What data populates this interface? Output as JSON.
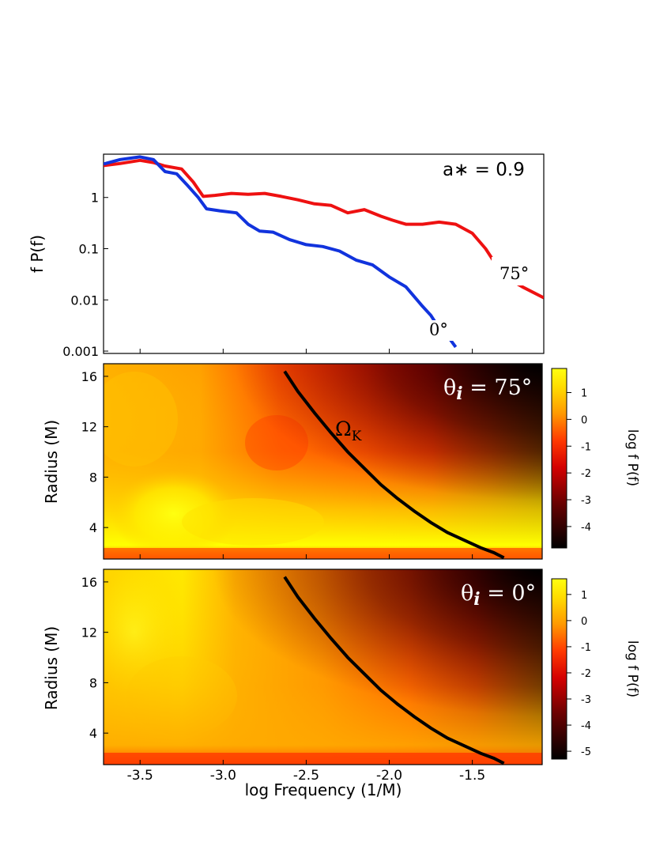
{
  "figure": {
    "x_axis_label": "log Frequency (1/M)",
    "x_ticks": [
      -3.5,
      -3.0,
      -2.5,
      -2.0,
      -1.5
    ],
    "x_tick_labels": [
      "-3.5",
      "-3.0",
      "-2.5",
      "-2.0",
      "-1.5"
    ],
    "xlim": [
      -3.72,
      -1.07
    ]
  },
  "colors": {
    "red": "#ee1111",
    "blue": "#1133dd",
    "curve": "#000000"
  },
  "chart_data": [
    {
      "type": "line",
      "ylabel": "f P(f)",
      "yscale": "log",
      "ylim": [
        0.0009,
        7
      ],
      "y_ticks": [
        0.001,
        0.01,
        0.1,
        1
      ],
      "y_tick_labels": [
        "0.001",
        "0.01",
        "0.1",
        "1"
      ],
      "annotation_main": "a∗ = 0.9",
      "series": [
        {
          "name": "75°",
          "color": "#ee1111",
          "points": [
            [
              -3.72,
              4.2
            ],
            [
              -3.62,
              4.6
            ],
            [
              -3.5,
              5.3
            ],
            [
              -3.42,
              4.8
            ],
            [
              -3.35,
              4.1
            ],
            [
              -3.25,
              3.6
            ],
            [
              -3.18,
              2.0
            ],
            [
              -3.12,
              1.05
            ],
            [
              -3.05,
              1.1
            ],
            [
              -2.95,
              1.2
            ],
            [
              -2.85,
              1.15
            ],
            [
              -2.75,
              1.2
            ],
            [
              -2.65,
              1.05
            ],
            [
              -2.55,
              0.9
            ],
            [
              -2.45,
              0.75
            ],
            [
              -2.35,
              0.7
            ],
            [
              -2.25,
              0.5
            ],
            [
              -2.15,
              0.58
            ],
            [
              -2.05,
              0.43
            ],
            [
              -1.98,
              0.36
            ],
            [
              -1.9,
              0.3
            ],
            [
              -1.8,
              0.3
            ],
            [
              -1.7,
              0.33
            ],
            [
              -1.6,
              0.3
            ],
            [
              -1.5,
              0.2
            ],
            [
              -1.42,
              0.1
            ],
            [
              -1.35,
              0.045
            ],
            [
              -1.3,
              0.028
            ],
            [
              -1.2,
              0.018
            ],
            [
              -1.07,
              0.011
            ]
          ]
        },
        {
          "name": "0°",
          "color": "#1133dd",
          "points": [
            [
              -3.72,
              4.5
            ],
            [
              -3.62,
              5.5
            ],
            [
              -3.5,
              6.2
            ],
            [
              -3.42,
              5.5
            ],
            [
              -3.35,
              3.2
            ],
            [
              -3.28,
              2.9
            ],
            [
              -3.22,
              1.8
            ],
            [
              -3.15,
              1.0
            ],
            [
              -3.1,
              0.6
            ],
            [
              -3.02,
              0.55
            ],
            [
              -2.92,
              0.5
            ],
            [
              -2.85,
              0.3
            ],
            [
              -2.78,
              0.22
            ],
            [
              -2.7,
              0.21
            ],
            [
              -2.6,
              0.15
            ],
            [
              -2.5,
              0.12
            ],
            [
              -2.4,
              0.11
            ],
            [
              -2.3,
              0.09
            ],
            [
              -2.2,
              0.06
            ],
            [
              -2.1,
              0.048
            ],
            [
              -2.0,
              0.028
            ],
            [
              -1.9,
              0.018
            ],
            [
              -1.8,
              0.0075
            ],
            [
              -1.75,
              0.005
            ],
            [
              -1.7,
              0.0028
            ],
            [
              -1.64,
              0.0018
            ],
            [
              -1.6,
              0.0012
            ]
          ]
        }
      ],
      "labels": {
        "red_series": "75°",
        "blue_series": "0°"
      }
    },
    {
      "type": "heatmap",
      "ylabel": "Radius (M)",
      "ylim": [
        1.5,
        17
      ],
      "y_ticks": [
        4,
        8,
        12,
        16
      ],
      "y_tick_labels": [
        "4",
        "8",
        "12",
        "16"
      ],
      "colorbar_label": "log f P(f)",
      "colorbar_range": [
        -4.8,
        1.9
      ],
      "colorbar_ticks": [
        1,
        0,
        -1,
        -2,
        -3,
        -4
      ],
      "colorbar_tick_labels": [
        "1",
        "0",
        "-1",
        "-2",
        "-3",
        "-4"
      ],
      "annotation_theta": "θ",
      "annotation_sub": "i",
      "annotation_value": " = 75°",
      "curve_label_main": "Ω",
      "curve_label_sub": "K",
      "curve_points": [
        [
          -2.63,
          16.4
        ],
        [
          -2.55,
          14.8
        ],
        [
          -2.45,
          13.1
        ],
        [
          -2.35,
          11.5
        ],
        [
          -2.25,
          10.0
        ],
        [
          -2.15,
          8.7
        ],
        [
          -2.05,
          7.4
        ],
        [
          -1.95,
          6.3
        ],
        [
          -1.85,
          5.3
        ],
        [
          -1.75,
          4.4
        ],
        [
          -1.65,
          3.6
        ],
        [
          -1.55,
          3.0
        ],
        [
          -1.45,
          2.4
        ],
        [
          -1.37,
          2.0
        ],
        [
          -1.31,
          1.6
        ]
      ]
    },
    {
      "type": "heatmap",
      "ylabel": "Radius (M)",
      "ylim": [
        1.5,
        17
      ],
      "y_ticks": [
        4,
        8,
        12,
        16
      ],
      "y_tick_labels": [
        "4",
        "8",
        "12",
        "16"
      ],
      "colorbar_label": "log f P(f)",
      "colorbar_range": [
        -5.3,
        1.6
      ],
      "colorbar_ticks": [
        1,
        0,
        -1,
        -2,
        -3,
        -4,
        -5
      ],
      "colorbar_tick_labels": [
        "1",
        "0",
        "-1",
        "-2",
        "-3",
        "-4",
        "-5"
      ],
      "annotation_theta": "θ",
      "annotation_sub": "i",
      "annotation_value": " = 0°",
      "curve_points": [
        [
          -2.63,
          16.4
        ],
        [
          -2.55,
          14.8
        ],
        [
          -2.45,
          13.1
        ],
        [
          -2.35,
          11.5
        ],
        [
          -2.25,
          10.0
        ],
        [
          -2.15,
          8.7
        ],
        [
          -2.05,
          7.4
        ],
        [
          -1.95,
          6.3
        ],
        [
          -1.85,
          5.3
        ],
        [
          -1.75,
          4.4
        ],
        [
          -1.65,
          3.6
        ],
        [
          -1.55,
          3.0
        ],
        [
          -1.45,
          2.4
        ],
        [
          -1.37,
          2.0
        ],
        [
          -1.31,
          1.6
        ]
      ]
    }
  ]
}
